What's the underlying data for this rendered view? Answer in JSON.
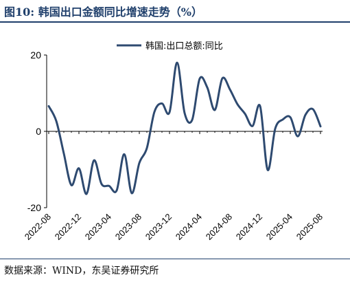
{
  "header": {
    "title": "图10: 韩国出口金额同比增速走势（%）"
  },
  "footer": {
    "source": "数据来源：WIND，东吴证券研究所"
  },
  "colors": {
    "series": "#2e4a70",
    "axis": "#000000",
    "title": "#1f3f6b"
  },
  "chart_data": {
    "type": "line",
    "title": "",
    "xlabel": "",
    "ylabel": "",
    "ylim": [
      -20,
      20
    ],
    "yticks": [
      -20,
      0,
      20
    ],
    "grid": false,
    "legend": "top-center",
    "x": [
      "2022-08",
      "2022-09",
      "2022-10",
      "2022-11",
      "2022-12",
      "2023-01",
      "2023-02",
      "2023-03",
      "2023-04",
      "2023-05",
      "2023-06",
      "2023-07",
      "2023-08",
      "2023-09",
      "2023-10",
      "2023-11",
      "2023-12",
      "2024-01",
      "2024-02",
      "2024-03",
      "2024-04",
      "2024-05",
      "2024-06",
      "2024-07",
      "2024-08",
      "2024-09",
      "2024-10",
      "2024-11",
      "2024-12",
      "2025-01",
      "2025-02",
      "2025-03",
      "2025-04",
      "2025-05",
      "2025-06",
      "2025-07",
      "2025-08"
    ],
    "x_tick_labels": [
      "2022-08",
      "2022-12",
      "2023-04",
      "2023-08",
      "2023-12",
      "2024-04",
      "2024-08",
      "2024-12",
      "2025-04",
      "2025-08"
    ],
    "series": [
      {
        "name": "韩国:出口总额:同比",
        "values": [
          6.6,
          2.7,
          -5.8,
          -14.1,
          -9.7,
          -16.4,
          -7.6,
          -13.8,
          -14.3,
          -15.5,
          -6.0,
          -16.2,
          -8.3,
          -4.4,
          5.1,
          7.3,
          5.0,
          18.0,
          4.8,
          3.0,
          13.8,
          11.5,
          5.6,
          13.9,
          11.0,
          7.1,
          4.6,
          1.4,
          6.6,
          -10.1,
          0.7,
          3.1,
          3.7,
          -1.3,
          4.3,
          5.8,
          1.3
        ]
      }
    ]
  }
}
